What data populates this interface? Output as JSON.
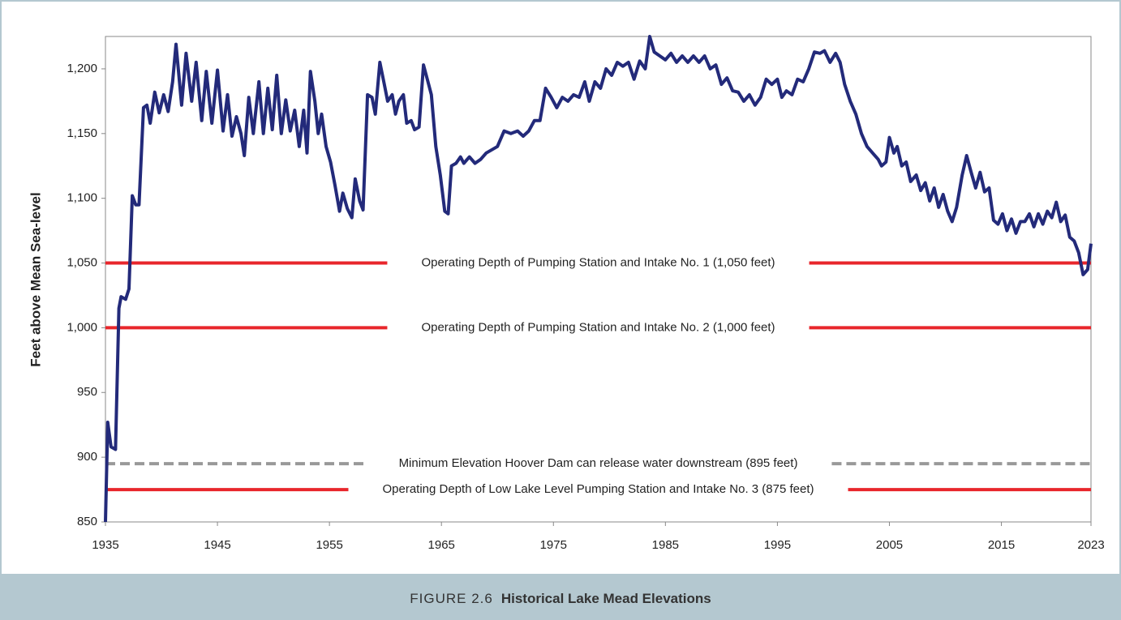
{
  "chart_data": {
    "type": "line",
    "ylabel": "Feet above Mean Sea-level",
    "xlim": [
      1935,
      2023
    ],
    "xticks": [
      1935,
      1945,
      1955,
      1965,
      1975,
      1985,
      1995,
      2005,
      2015,
      2023
    ],
    "ylim": [
      850,
      1225
    ],
    "yticks": [
      {
        "value": 850,
        "label": "850"
      },
      {
        "value": 900,
        "label": "900"
      },
      {
        "value": 950,
        "label": "950"
      },
      {
        "value": 1000,
        "label": "1,000"
      },
      {
        "value": 1050,
        "label": "1,050"
      },
      {
        "value": 1100,
        "label": "1,100"
      },
      {
        "value": 1150,
        "label": "1,150"
      },
      {
        "value": 1200,
        "label": "1,200"
      }
    ],
    "reference_lines": [
      {
        "value": 1050,
        "label": "Operating Depth of Pumping Station and Intake No. 1 (1,050 feet)",
        "color": "#e8262b",
        "dashed": false
      },
      {
        "value": 1000,
        "label": "Operating Depth of Pumping Station and Intake No. 2 (1,000 feet)",
        "color": "#e8262b",
        "dashed": false
      },
      {
        "value": 895,
        "label": "Minimum Elevation Hoover Dam can release water downstream (895 feet)",
        "color": "#999999",
        "dashed": true
      },
      {
        "value": 875,
        "label": "Operating Depth of Low Lake Level Pumping Station and Intake No. 3 (875 feet)",
        "color": "#e8262b",
        "dashed": false
      }
    ],
    "series": [
      {
        "color": "#232a7a",
        "x": [
          1935.0,
          1935.2,
          1935.5,
          1935.9,
          1936.2,
          1936.4,
          1936.8,
          1937.1,
          1937.4,
          1937.7,
          1938.0,
          1938.4,
          1938.7,
          1939.0,
          1939.4,
          1939.8,
          1940.2,
          1940.6,
          1941.0,
          1941.3,
          1941.8,
          1942.2,
          1942.7,
          1943.1,
          1943.6,
          1944.0,
          1944.5,
          1945.0,
          1945.5,
          1945.9,
          1946.3,
          1946.7,
          1947.1,
          1947.4,
          1947.8,
          1948.2,
          1948.7,
          1949.1,
          1949.5,
          1949.9,
          1950.3,
          1950.7,
          1951.1,
          1951.5,
          1951.9,
          1952.3,
          1952.7,
          1953.0,
          1953.3,
          1953.7,
          1954.0,
          1954.3,
          1954.7,
          1955.1,
          1955.5,
          1955.9,
          1956.2,
          1956.6,
          1957.0,
          1957.3,
          1957.7,
          1958.0,
          1958.4,
          1958.8,
          1959.1,
          1959.5,
          1959.9,
          1960.2,
          1960.6,
          1960.9,
          1961.2,
          1961.6,
          1961.9,
          1962.3,
          1962.6,
          1963.0,
          1963.4,
          1963.8,
          1964.1,
          1964.5,
          1964.9,
          1965.3,
          1965.6,
          1965.9,
          1966.3,
          1966.7,
          1967.0,
          1967.5,
          1968.0,
          1968.5,
          1969.0,
          1970.0,
          1970.6,
          1971.2,
          1971.8,
          1972.3,
          1972.8,
          1973.3,
          1973.8,
          1974.3,
          1974.8,
          1975.3,
          1975.8,
          1976.3,
          1976.8,
          1977.3,
          1977.8,
          1978.2,
          1978.7,
          1979.2,
          1979.7,
          1980.2,
          1980.7,
          1981.2,
          1981.7,
          1982.2,
          1982.7,
          1983.2,
          1983.6,
          1984.0,
          1984.5,
          1985.0,
          1985.5,
          1986.0,
          1986.5,
          1987.0,
          1987.5,
          1988.0,
          1988.5,
          1989.0,
          1989.5,
          1990.0,
          1990.5,
          1991.0,
          1991.5,
          1992.0,
          1992.5,
          1993.0,
          1993.5,
          1994.0,
          1994.5,
          1995.0,
          1995.4,
          1995.8,
          1996.3,
          1996.8,
          1997.3,
          1997.8,
          1998.3,
          1998.8,
          1999.2,
          1999.7,
          2000.2,
          2000.6,
          2001.0,
          2001.5,
          2002.0,
          2002.5,
          2003.0,
          2003.5,
          2004.0,
          2004.3,
          2004.7,
          2005.0,
          2005.4,
          2005.7,
          2006.1,
          2006.5,
          2006.9,
          2007.4,
          2007.8,
          2008.2,
          2008.6,
          2009.0,
          2009.4,
          2009.8,
          2010.2,
          2010.6,
          2011.0,
          2011.5,
          2011.9,
          2012.3,
          2012.7,
          2013.1,
          2013.5,
          2013.9,
          2014.3,
          2014.7,
          2015.1,
          2015.5,
          2015.9,
          2016.3,
          2016.7,
          2017.1,
          2017.5,
          2017.9,
          2018.3,
          2018.7,
          2019.1,
          2019.5,
          2019.9,
          2020.3,
          2020.7,
          2021.1,
          2021.5,
          2021.9,
          2022.3,
          2022.7,
          2023.0
        ],
        "values": [
          850,
          927,
          908,
          906,
          1015,
          1024,
          1022,
          1030,
          1102,
          1095,
          1095,
          1170,
          1172,
          1158,
          1182,
          1166,
          1180,
          1167,
          1190,
          1219,
          1172,
          1212,
          1175,
          1205,
          1160,
          1198,
          1158,
          1199,
          1152,
          1180,
          1148,
          1163,
          1150,
          1133,
          1178,
          1150,
          1190,
          1150,
          1185,
          1153,
          1195,
          1150,
          1176,
          1152,
          1168,
          1140,
          1168,
          1135,
          1198,
          1175,
          1150,
          1165,
          1140,
          1128,
          1110,
          1090,
          1104,
          1092,
          1085,
          1115,
          1098,
          1091,
          1180,
          1178,
          1165,
          1205,
          1188,
          1175,
          1180,
          1165,
          1175,
          1180,
          1158,
          1160,
          1153,
          1155,
          1203,
          1190,
          1180,
          1140,
          1118,
          1090,
          1088,
          1125,
          1127,
          1132,
          1127,
          1132,
          1127,
          1130,
          1135,
          1140,
          1152,
          1150,
          1152,
          1148,
          1152,
          1160,
          1160,
          1185,
          1178,
          1170,
          1178,
          1175,
          1180,
          1178,
          1190,
          1175,
          1190,
          1185,
          1200,
          1195,
          1205,
          1202,
          1205,
          1192,
          1206,
          1200,
          1225,
          1213,
          1210,
          1207,
          1212,
          1205,
          1210,
          1205,
          1210,
          1205,
          1210,
          1200,
          1203,
          1188,
          1193,
          1183,
          1182,
          1175,
          1180,
          1172,
          1178,
          1192,
          1188,
          1192,
          1178,
          1183,
          1180,
          1192,
          1190,
          1200,
          1213,
          1212,
          1214,
          1205,
          1212,
          1205,
          1188,
          1175,
          1165,
          1150,
          1140,
          1135,
          1130,
          1125,
          1128,
          1147,
          1135,
          1140,
          1125,
          1128,
          1113,
          1118,
          1106,
          1112,
          1098,
          1108,
          1093,
          1103,
          1090,
          1082,
          1093,
          1118,
          1133,
          1120,
          1108,
          1120,
          1105,
          1108,
          1083,
          1080,
          1088,
          1075,
          1084,
          1073,
          1082,
          1082,
          1088,
          1078,
          1088,
          1080,
          1090,
          1085,
          1097,
          1082,
          1087,
          1070,
          1067,
          1058,
          1041,
          1045,
          1065
        ]
      }
    ]
  },
  "caption": {
    "label": "FIGURE 2.6",
    "title": "Historical Lake Mead Elevations"
  }
}
